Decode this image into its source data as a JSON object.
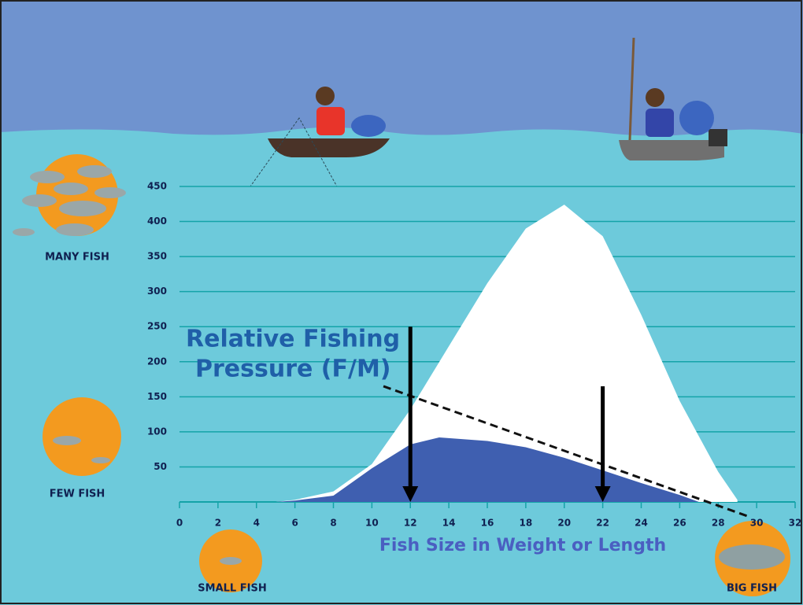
{
  "chart_data": {
    "type": "area",
    "xlabel": "Fish Size in Weight or Length",
    "xlim": [
      0,
      32
    ],
    "xticks": [
      0,
      2,
      4,
      6,
      8,
      10,
      12,
      14,
      16,
      18,
      20,
      22,
      24,
      26,
      28,
      30,
      32
    ],
    "ylim": [
      0,
      450
    ],
    "yticks": [
      50,
      100,
      150,
      200,
      250,
      300,
      350,
      400,
      450
    ],
    "grid": true,
    "series": [
      {
        "color": "#ffffff",
        "x": [
          5,
          6,
          8,
          10,
          12,
          14,
          16,
          18,
          20,
          22,
          24,
          26,
          28,
          29
        ],
        "values": [
          0,
          3,
          15,
          54,
          132,
          222,
          312,
          390,
          424,
          379,
          267,
          144,
          43,
          3
        ]
      },
      {
        "color": "#3f5fb0",
        "x": [
          5,
          6,
          8,
          10,
          12,
          13.5,
          16,
          18,
          20,
          22,
          24,
          26,
          27
        ],
        "values": [
          0,
          2,
          9,
          48,
          82,
          92,
          87,
          78,
          63,
          45,
          27,
          10,
          0
        ]
      }
    ],
    "pressure_label": [
      "Relative Fishing",
      "Pressure (F/M)"
    ],
    "pressure_line": {
      "x": [
        10.6,
        29.5
      ],
      "values": [
        165,
        -20
      ]
    },
    "arrows": [
      {
        "x": 12,
        "from": 250,
        "to": 0
      },
      {
        "x": 22,
        "from": 165,
        "to": 0
      }
    ],
    "abundance_labels": {
      "many": "MANY FISH",
      "few": "FEW FISH",
      "small": "SMALL FISH",
      "big": "BIG FISH"
    }
  }
}
